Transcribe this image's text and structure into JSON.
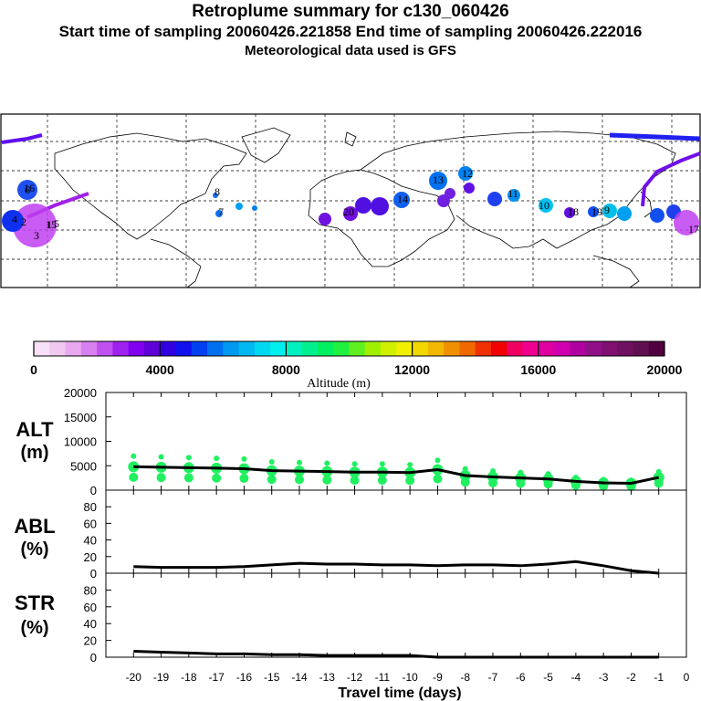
{
  "header": {
    "title": "Retroplume summary for c130_060426",
    "line2": "Start time of sampling 20060426.221858     End time of sampling 20060426.222016",
    "line3": "Meteorological data used is GFS"
  },
  "colorbar": {
    "ticks": [
      "0",
      "4000",
      "8000",
      "12000",
      "16000",
      "20000"
    ],
    "label": "Altitude  (m)",
    "colors": [
      "#f8e0f8",
      "#f0c8f0",
      "#e8a8f0",
      "#d880f0",
      "#c050f0",
      "#a020f0",
      "#8000f0",
      "#6000d8",
      "#3000e0",
      "#1010f0",
      "#0040f0",
      "#0070f0",
      "#0098f0",
      "#00b8f0",
      "#00d8f0",
      "#00f0f0",
      "#00f0c0",
      "#00f090",
      "#00f060",
      "#20f040",
      "#60f020",
      "#a0f000",
      "#d0f000",
      "#f0f000",
      "#f0d800",
      "#f0b800",
      "#f09000",
      "#f06800",
      "#f03000",
      "#f00000",
      "#f00060",
      "#f00090",
      "#e000a0",
      "#d000b0",
      "#b000a0",
      "#901088",
      "#801070",
      "#701060",
      "#601050",
      "#500040"
    ]
  },
  "map": {
    "plume_labels": [
      "1",
      "2",
      "3",
      "4",
      "5",
      "6",
      "7",
      "8",
      "9",
      "10",
      "11",
      "12",
      "13",
      "14",
      "15",
      "16",
      "17",
      "18",
      "19",
      "20"
    ]
  },
  "chart_data": [
    {
      "type": "scatter",
      "panel": "ALT",
      "ylabel": "ALT\n(m)",
      "ylabel_line1": "ALT",
      "ylabel_line2": "(m)",
      "ylim": [
        0,
        20000
      ],
      "yticks": [
        "0",
        "5000",
        "10000",
        "15000",
        "20000"
      ],
      "xlim": [
        -21,
        0
      ],
      "x": [
        -20,
        -19,
        -18,
        -17,
        -16,
        -15,
        -14,
        -13,
        -12,
        -11,
        -10,
        -9,
        -8,
        -7,
        -6,
        -5,
        -4,
        -3,
        -2,
        -1
      ],
      "median_line": [
        4800,
        4700,
        4600,
        4500,
        4400,
        4000,
        3900,
        3800,
        3700,
        3700,
        3600,
        4200,
        3000,
        2700,
        2500,
        2300,
        1800,
        1500,
        1400,
        2600
      ],
      "points_color": "#20f060"
    },
    {
      "type": "line",
      "panel": "ABL",
      "ylabel_line1": "ABL",
      "ylabel_line2": "(%)",
      "ylim": [
        0,
        100
      ],
      "yticks": [
        "0",
        "20",
        "40",
        "60",
        "80"
      ],
      "x": [
        -20,
        -19,
        -18,
        -17,
        -16,
        -15,
        -14,
        -13,
        -12,
        -11,
        -10,
        -9,
        -8,
        -7,
        -6,
        -5,
        -4,
        -3,
        -2,
        -1
      ],
      "values": [
        8,
        7,
        7,
        7,
        8,
        10,
        12,
        11,
        11,
        10,
        10,
        9,
        10,
        10,
        9,
        11,
        14,
        9,
        3,
        0
      ]
    },
    {
      "type": "line",
      "panel": "STR",
      "ylabel_line1": "STR",
      "ylabel_line2": "(%)",
      "ylim": [
        0,
        100
      ],
      "yticks": [
        "0",
        "20",
        "40",
        "60",
        "80"
      ],
      "x": [
        -20,
        -19,
        -18,
        -17,
        -16,
        -15,
        -14,
        -13,
        -12,
        -11,
        -10,
        -9,
        -8,
        -7,
        -6,
        -5,
        -4,
        -3,
        -2,
        -1
      ],
      "values": [
        7,
        6,
        5,
        4,
        4,
        3,
        3,
        2,
        2,
        2,
        2,
        0,
        0,
        0,
        0,
        0,
        0,
        0,
        0,
        0
      ]
    }
  ],
  "x_axis": {
    "label": "Travel time (days)",
    "ticks": [
      "-20",
      "-19",
      "-18",
      "-17",
      "-16",
      "-15",
      "-14",
      "-13",
      "-12",
      "-11",
      "-10",
      "-9",
      "-8",
      "-7",
      "-6",
      "-5",
      "-4",
      "-3",
      "-2",
      "-1",
      "0"
    ]
  }
}
